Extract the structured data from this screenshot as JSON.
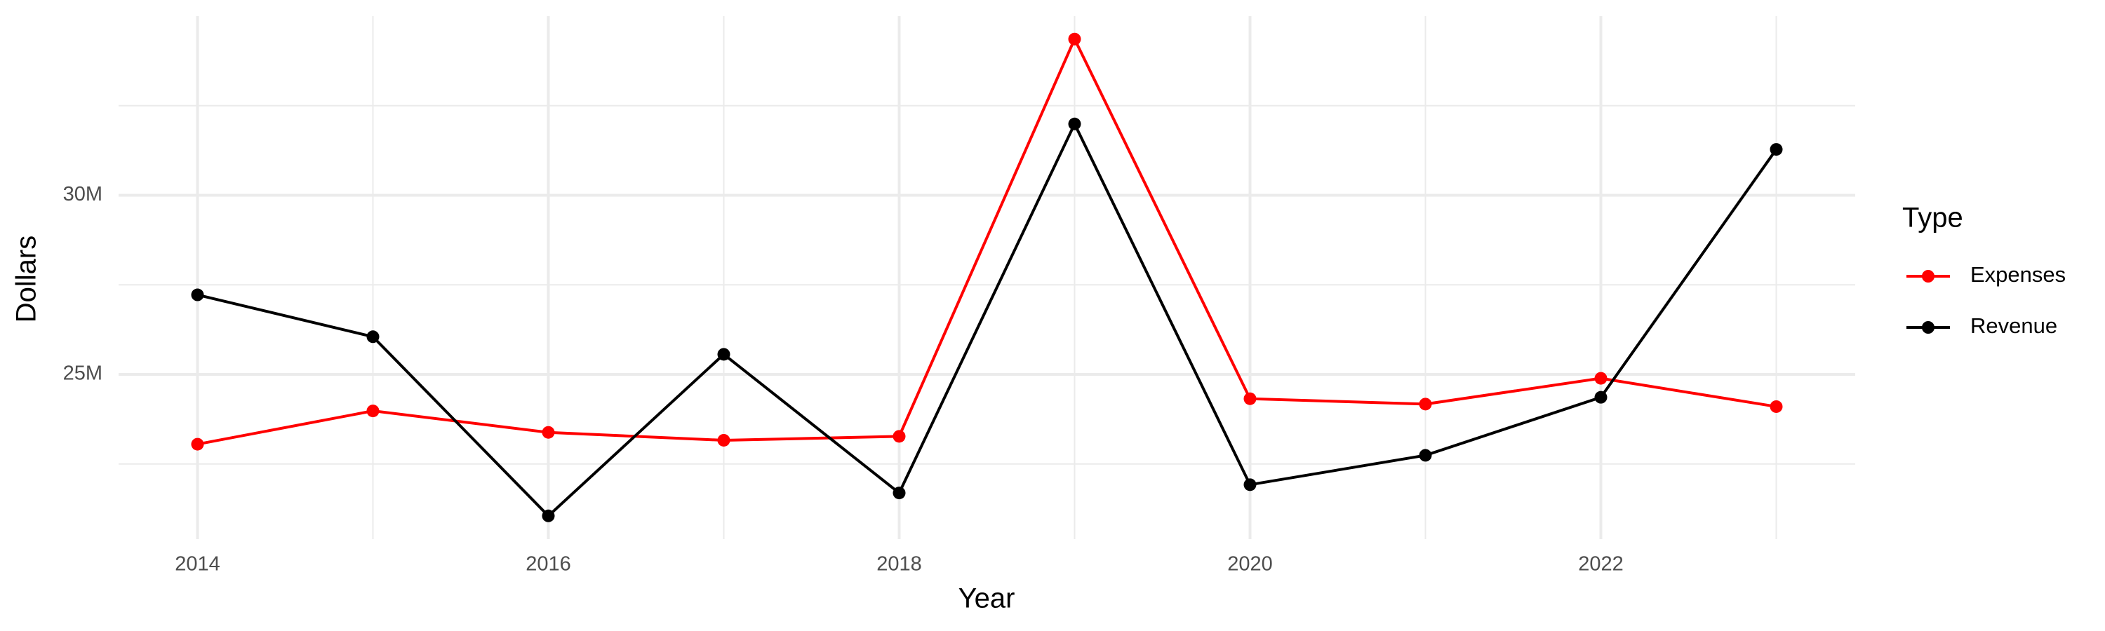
{
  "chart_data": {
    "type": "line",
    "x_label": "Year",
    "y_label": "Dollars",
    "x": [
      2014,
      2015,
      2016,
      2017,
      2018,
      2019,
      2020,
      2021,
      2022,
      2023
    ],
    "series": [
      {
        "name": "Expenses",
        "color": "#ff0000",
        "values": [
          23050000,
          23980000,
          23380000,
          23160000,
          23270000,
          34360000,
          24320000,
          24170000,
          24890000,
          24100000
        ]
      },
      {
        "name": "Revenue",
        "color": "#000000",
        "values": [
          27220000,
          26050000,
          21050000,
          25560000,
          21690000,
          31990000,
          21920000,
          22740000,
          24360000,
          31280000
        ]
      }
    ],
    "xlim": [
      2013.55,
      2023.45
    ],
    "xticks": [
      2014,
      2016,
      2018,
      2020,
      2022
    ],
    "ylim": [
      20400000,
      35000000
    ],
    "yticks": [
      {
        "value": 25000000,
        "label": "25M"
      },
      {
        "value": 30000000,
        "label": "30M"
      }
    ],
    "grid": true,
    "legend_title": "Type",
    "legend_position": "right"
  }
}
